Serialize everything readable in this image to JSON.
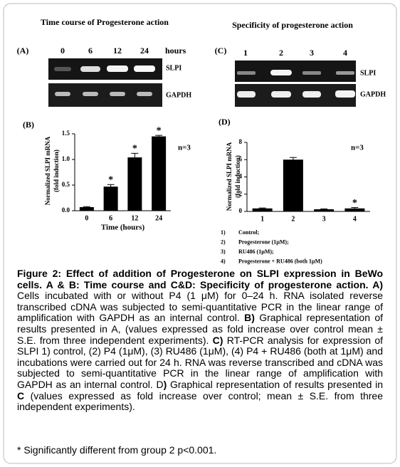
{
  "panels": [
    {
      "title": "Time course of Progesterone action",
      "label": "(A)",
      "lanes": [
        "0",
        "6",
        "12",
        "24"
      ],
      "lane_unit": "hours",
      "rows": [
        "SLPI",
        "GAPDH"
      ]
    },
    {
      "title": "Specificity of progesterone action",
      "label": "(C)",
      "lanes": [
        "1",
        "2",
        "3",
        "4"
      ],
      "rows": [
        "SLPI",
        "GAPDH"
      ]
    }
  ],
  "chart_data": [
    {
      "type": "bar",
      "panel": "(B)",
      "y_label": [
        "Normalized SLPI mRNA",
        "(fold induction)"
      ],
      "x_label": "Time (hours)",
      "annotation": "n=3",
      "categories": [
        "0",
        "6",
        "12",
        "24"
      ],
      "values": [
        0.07,
        0.47,
        1.04,
        1.45
      ],
      "errors": [
        0.01,
        0.04,
        0.08,
        0.02
      ],
      "markers": [
        null,
        "*",
        "*",
        "*"
      ],
      "color": "#000000",
      "ylim": [
        0,
        1.5
      ],
      "yticks": [
        {
          "value": 0,
          "label": "0.0"
        },
        0.5,
        {
          "value": 1,
          "label": "1.0"
        },
        {
          "value": 1.5,
          "label": "1.5"
        }
      ]
    },
    {
      "type": "bar",
      "panel": "(D)",
      "y_label": [
        "Normalized SLPI mRNA",
        "(fold induction)"
      ],
      "annotation": "n=3",
      "categories": [
        "1",
        "2",
        "3",
        "4"
      ],
      "values": [
        0.35,
        6.0,
        0.25,
        0.35
      ],
      "errors": [
        0.05,
        0.25,
        0.05,
        0.1
      ],
      "markers": [
        null,
        null,
        null,
        "*"
      ],
      "color": "#000000",
      "ylim": [
        0,
        8
      ],
      "yticks": [
        0,
        2,
        4,
        6,
        8
      ],
      "legend_items": [
        {
          "number": "1)",
          "label": "Control;"
        },
        {
          "number": "2)",
          "label": "Progesterone (1µM);"
        },
        {
          "number": "3)",
          "label": "RU486 (1µM);"
        },
        {
          "number": "4)",
          "label": "Progesterone + RU486 (both 1µM)"
        }
      ]
    }
  ],
  "caption": {
    "runs": [
      {
        "text": "Figure 2: Effect of addition of Progesterone on SLPI expression in BeWo cells. A & B: Time course and C&D: Specificity of progesterone action. A)",
        "bold": true
      },
      {
        "text": " Cells incubated with or without P4 (1 μM) for 0–24 h. RNA isolated reverse transcribed cDNA was subjected to semi-quantitative PCR in the linear range of amplification with GAPDH as an internal control. ",
        "bold": false
      },
      {
        "text": "B)",
        "bold": true
      },
      {
        "text": " Graphical representation of results presented in A, (values expressed as fold increase over control mean ± S.E. from three independent experiments). ",
        "bold": false
      },
      {
        "text": "C)",
        "bold": true
      },
      {
        "text": " RT-PCR analysis for expression of SLPI 1) control, (2) P4 (1μM), (3) RU486 (1μM), (4) P4 + RU486 (both at 1μM) and incubations were carried out for 24 h. RNA was reverse transcribed and cDNA was subjected to semi-quantitative PCR in the linear range of amplification with GAPDH as an internal control. D",
        "bold": false
      },
      {
        "text": ")",
        "bold": true
      },
      {
        "text": " Graphical representation of results presented in ",
        "bold": false
      },
      {
        "text": "C",
        "bold": true
      },
      {
        "text": " (values expressed as fold increase over control; mean ± S.E. from three independent experiments).",
        "bold": false
      }
    ],
    "note": "* Significantly different from group 2 p<0.001."
  }
}
